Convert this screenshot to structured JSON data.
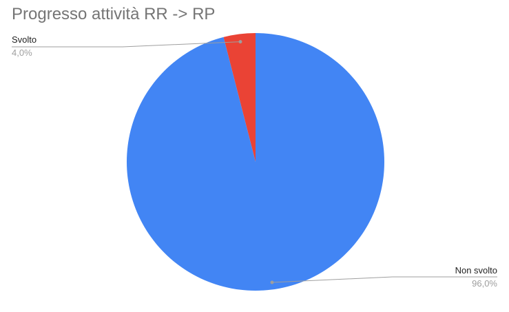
{
  "chart_data": {
    "type": "pie",
    "title": "Progresso attività RR -> RP",
    "slices": [
      {
        "label": "Svolto",
        "value": 4.0,
        "percent_label": "4,0%",
        "color": "#ea4335"
      },
      {
        "label": "Non svolto",
        "value": 96.0,
        "percent_label": "96,0%",
        "color": "#4285f4"
      }
    ],
    "legend": "none"
  }
}
